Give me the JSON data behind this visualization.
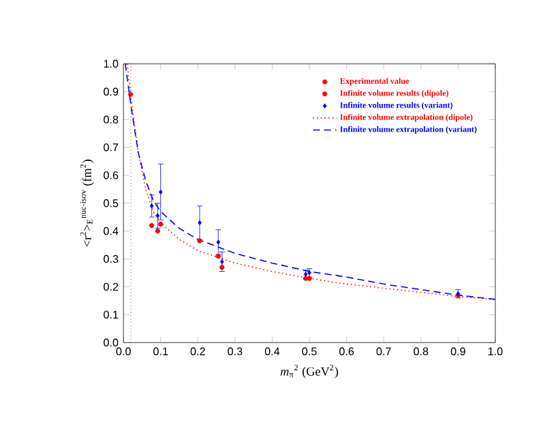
{
  "chart_data": {
    "type": "scatter",
    "xlabel": "*m*$_{π}$$^{2}$ (GeV$^{2}$)",
    "ylabel": "<r$^{2}$>$_{E}$$^{nuc-isov}$ (fm$^{2}$)",
    "xlim": [
      0,
      1
    ],
    "ylim": [
      0,
      1
    ],
    "xticks": [
      {
        "value": 0,
        "label": "0.0"
      },
      {
        "value": 0.1,
        "label": "0.1"
      },
      {
        "value": 0.2,
        "label": "0.2"
      },
      {
        "value": 0.3,
        "label": "0.3"
      },
      {
        "value": 0.4,
        "label": "0.4"
      },
      {
        "value": 0.5,
        "label": "0.5"
      },
      {
        "value": 0.6,
        "label": "0.6"
      },
      {
        "value": 0.7,
        "label": "0.7"
      },
      {
        "value": 0.8,
        "label": "0.8"
      },
      {
        "value": 0.9,
        "label": "0.9"
      },
      {
        "value": 1,
        "label": "1.0"
      }
    ],
    "yticks": [
      {
        "value": 0,
        "label": "0.0"
      },
      {
        "value": 0.1,
        "label": "0.1"
      },
      {
        "value": 0.2,
        "label": "0.2"
      },
      {
        "value": 0.3,
        "label": "0.3"
      },
      {
        "value": 0.4,
        "label": "0.4"
      },
      {
        "value": 0.5,
        "label": "0.5"
      },
      {
        "value": 0.6,
        "label": "0.6"
      },
      {
        "value": 0.7,
        "label": "0.7"
      },
      {
        "value": 0.8,
        "label": "0.8"
      },
      {
        "value": 0.9,
        "label": "0.9"
      },
      {
        "value": 1,
        "label": "1.0"
      }
    ],
    "grid": false,
    "legend": "top right",
    "ref_lines": [
      {
        "axis": "x",
        "value": 0.02,
        "color": "#000000",
        "line_style": "dotted"
      }
    ],
    "series": [
      {
        "name": "Experimental value",
        "marker": "circle",
        "color": "#ff0000",
        "x": [
          0.019
        ],
        "values": [
          0.89
        ]
      },
      {
        "name": "Infinite volume results (dipole)",
        "marker": "circle",
        "color": "#ff0000",
        "x": [
          0.076,
          0.092,
          0.1,
          0.205,
          0.255,
          0.265,
          0.49,
          0.5,
          0.9
        ],
        "values": [
          0.42,
          0.4,
          0.425,
          0.365,
          0.31,
          0.27,
          0.23,
          0.23,
          0.17
        ]
      },
      {
        "name": "Infinite volume results (variant)",
        "marker": "diamond",
        "color": "#0000ff",
        "x": [
          0.076,
          0.092,
          0.1,
          0.205,
          0.255,
          0.265,
          0.49,
          0.5,
          0.9
        ],
        "values": [
          0.49,
          0.455,
          0.54,
          0.43,
          0.36,
          0.29,
          0.245,
          0.25,
          0.175
        ],
        "errors": [
          0.04,
          0.045,
          0.1,
          0.06,
          0.045,
          0.035,
          0.015,
          0.015,
          0.015
        ]
      },
      {
        "name": "Infinite volume extrapolation (dipole)",
        "type": "line",
        "line_style": "dotted",
        "color": "#ff0000",
        "x": [
          0.01,
          0.02,
          0.04,
          0.06,
          0.08,
          0.1,
          0.15,
          0.2,
          0.3,
          0.4,
          0.5,
          0.6,
          0.7,
          0.8,
          0.9,
          1.0
        ],
        "values": [
          1.0,
          0.88,
          0.68,
          0.55,
          0.47,
          0.43,
          0.37,
          0.33,
          0.285,
          0.255,
          0.23,
          0.21,
          0.195,
          0.18,
          0.165,
          0.155
        ]
      },
      {
        "name": "Infinite volume extrapolation (variant)",
        "type": "line",
        "line_style": "dashed",
        "color": "#0000ff",
        "x": [
          0.005,
          0.02,
          0.04,
          0.06,
          0.08,
          0.1,
          0.15,
          0.2,
          0.3,
          0.4,
          0.5,
          0.6,
          0.7,
          0.8,
          0.9,
          1.0
        ],
        "values": [
          1.0,
          0.85,
          0.68,
          0.58,
          0.51,
          0.47,
          0.41,
          0.37,
          0.32,
          0.285,
          0.255,
          0.235,
          0.21,
          0.19,
          0.17,
          0.155
        ]
      }
    ]
  }
}
